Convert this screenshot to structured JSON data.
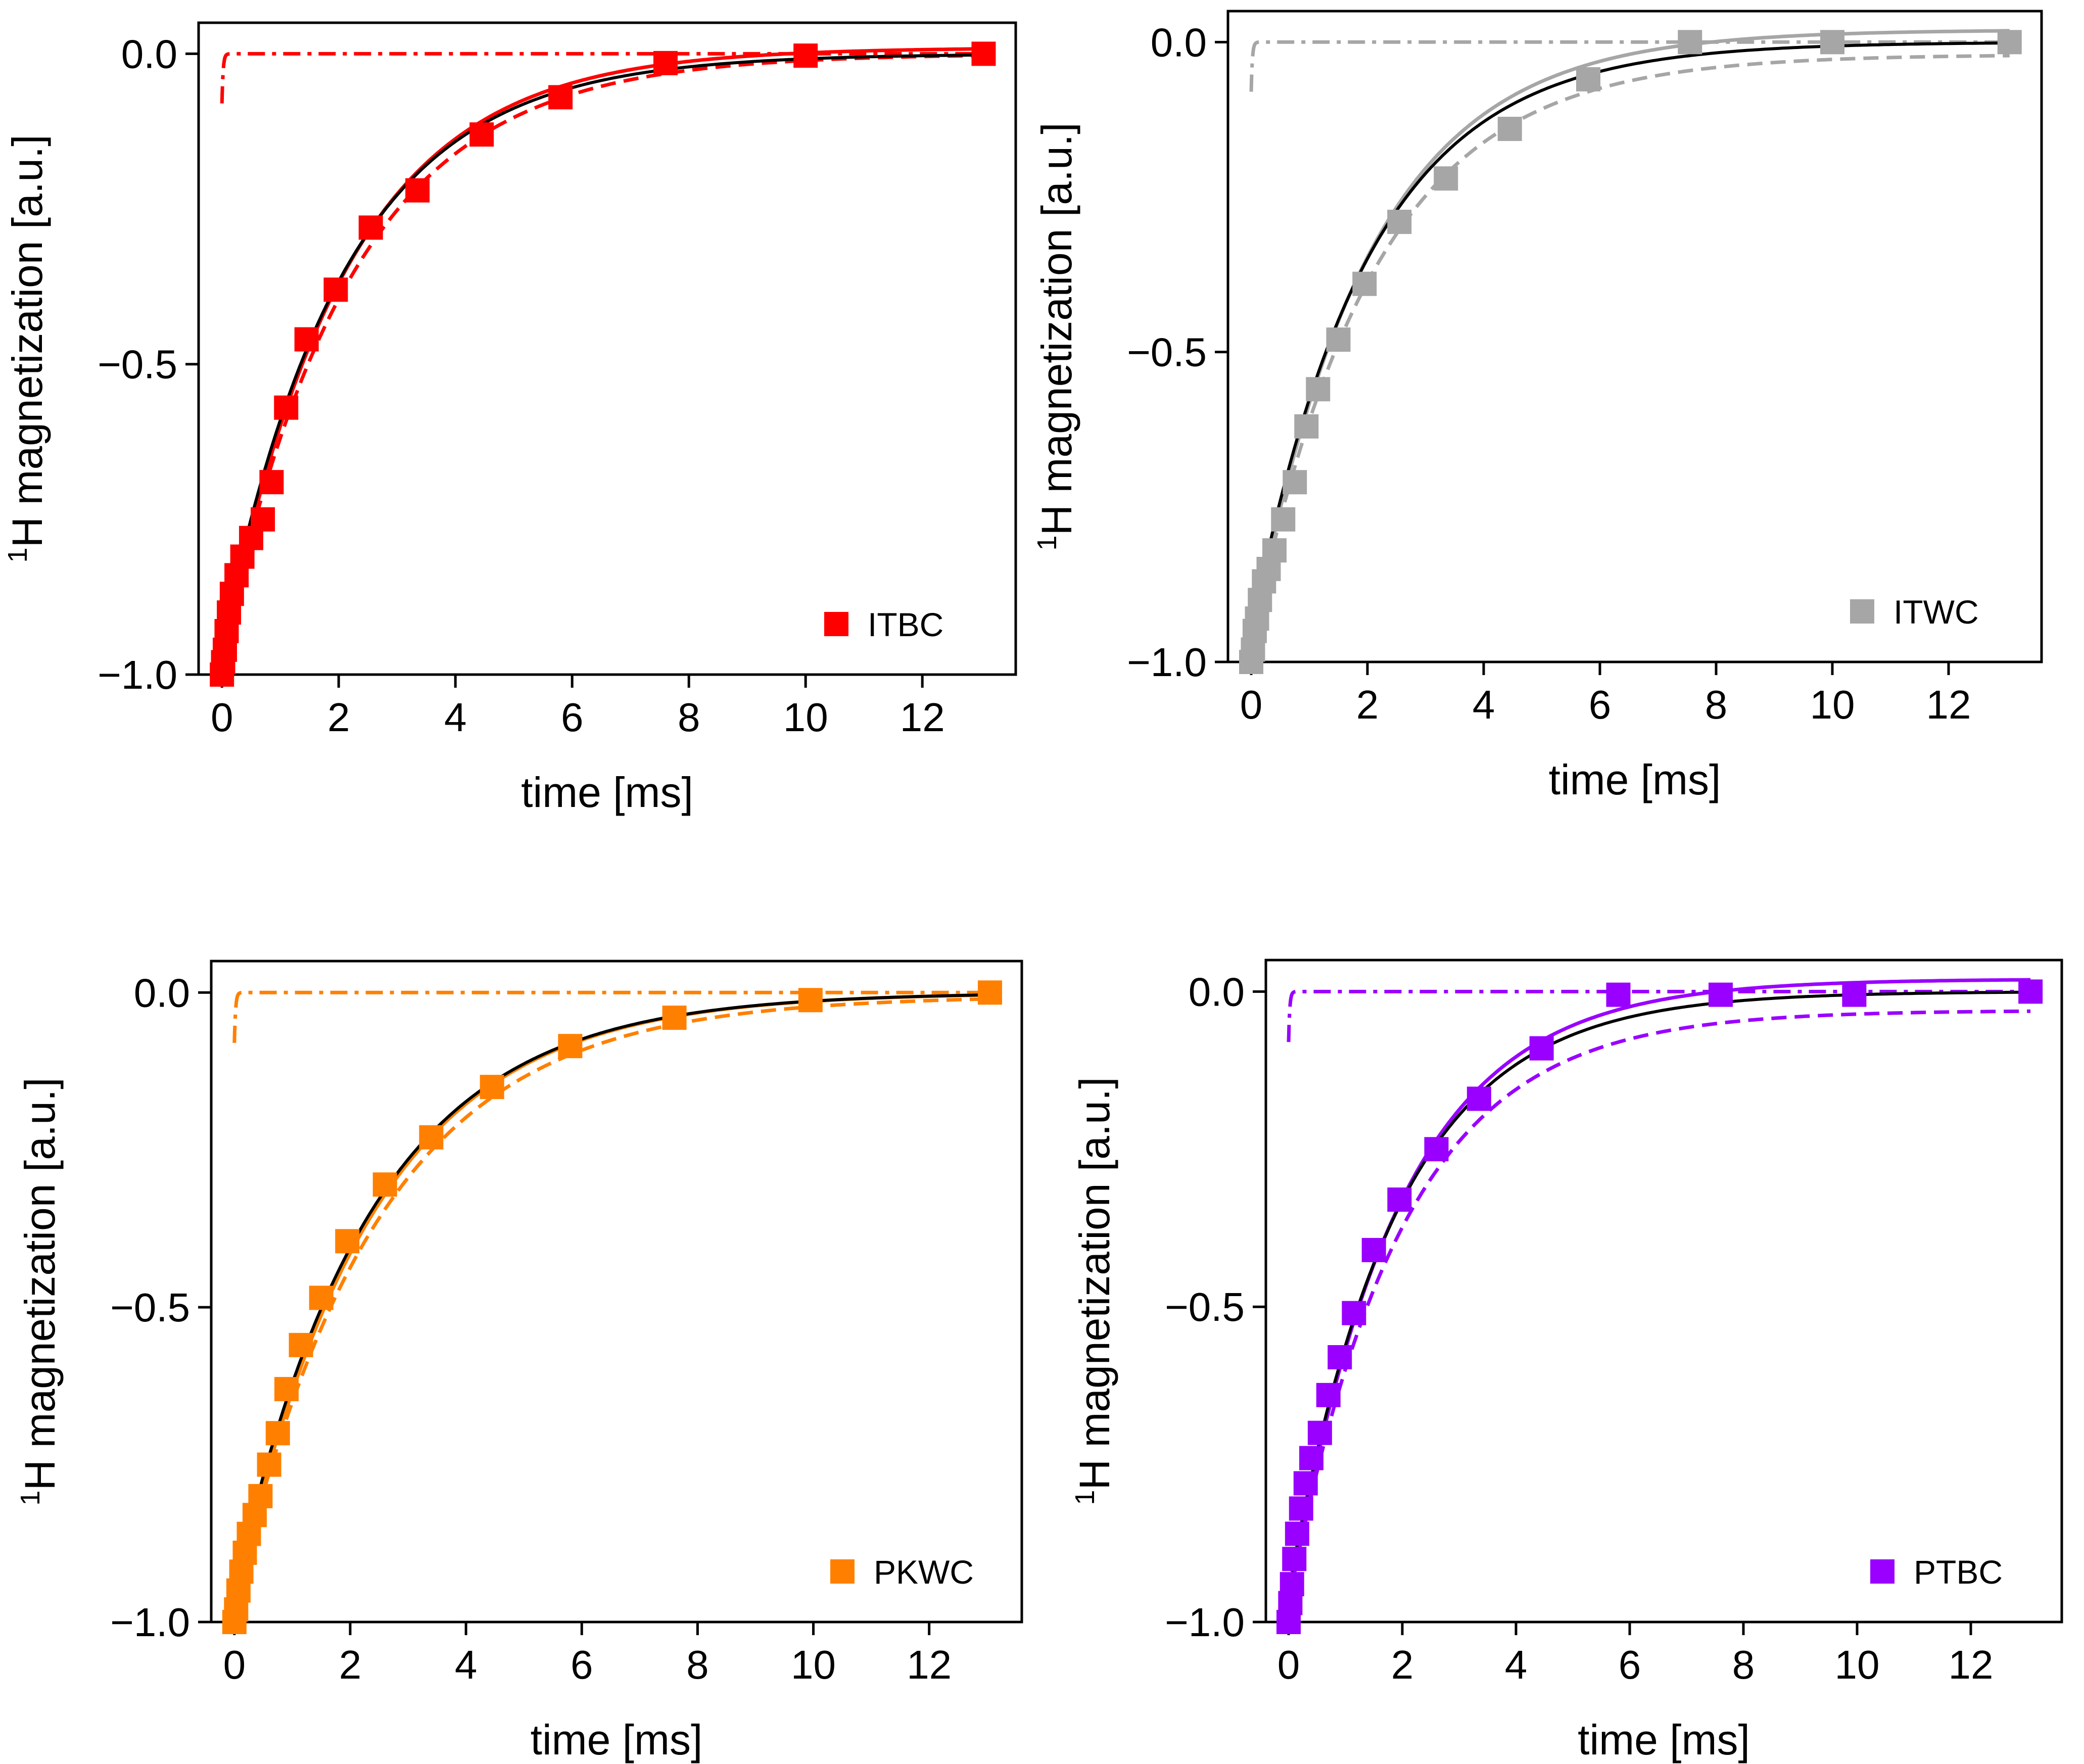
{
  "chart_data": [
    {
      "type": "scatter",
      "xlabel": "time [ms]",
      "ylabel_sup": "1",
      "ylabel": "H magnetization [a.u.]",
      "xlim": [
        -0.4,
        13.6
      ],
      "ylim": [
        -1.0,
        0.05
      ],
      "xticks": [
        0,
        2,
        4,
        6,
        8,
        10,
        12
      ],
      "yticks": [
        -1.0,
        -0.5,
        0.0
      ],
      "ytick_labels": [
        "−1.0",
        "−0.5",
        "0.0"
      ],
      "legend_position": "bottom-right",
      "series": [
        {
          "name": "ITBC",
          "color": "#ff0000",
          "x": [
            0.0,
            0.02,
            0.05,
            0.08,
            0.12,
            0.17,
            0.25,
            0.35,
            0.5,
            0.7,
            0.85,
            1.1,
            1.45,
            1.95,
            2.55,
            3.35,
            4.45,
            5.8,
            7.6,
            10.0,
            13.05
          ],
          "values": [
            -1.0,
            -0.98,
            -0.96,
            -0.93,
            -0.9,
            -0.87,
            -0.84,
            -0.81,
            -0.78,
            -0.75,
            -0.69,
            -0.57,
            -0.46,
            -0.38,
            -0.28,
            -0.22,
            -0.13,
            -0.07,
            -0.015,
            -0.003,
            0.0
          ]
        }
      ]
    },
    {
      "type": "scatter",
      "xlabel": "time [ms]",
      "ylabel_sup": "1",
      "ylabel": "H magnetization [a.u.]",
      "xlim": [
        -0.4,
        13.6
      ],
      "ylim": [
        -1.0,
        0.05
      ],
      "xticks": [
        0,
        2,
        4,
        6,
        8,
        10,
        12
      ],
      "yticks": [
        -1.0,
        -0.5,
        0.0
      ],
      "ytick_labels": [
        "−1.0",
        "−0.5",
        "0.0"
      ],
      "legend_position": "bottom-right",
      "series": [
        {
          "name": "ITWC",
          "color": "#a6a6a6",
          "x": [
            0.0,
            0.03,
            0.06,
            0.1,
            0.15,
            0.22,
            0.3,
            0.4,
            0.55,
            0.75,
            0.95,
            1.15,
            1.5,
            1.95,
            2.55,
            3.35,
            4.45,
            5.8,
            7.55,
            10.0,
            13.05
          ],
          "values": [
            -1.0,
            -0.98,
            -0.95,
            -0.93,
            -0.9,
            -0.87,
            -0.85,
            -0.82,
            -0.77,
            -0.71,
            -0.62,
            -0.56,
            -0.48,
            -0.39,
            -0.29,
            -0.22,
            -0.14,
            -0.06,
            0.0,
            0.0,
            0.0
          ]
        }
      ]
    },
    {
      "type": "scatter",
      "xlabel": "time [ms]",
      "ylabel_sup": "1",
      "ylabel": "H magnetization [a.u.]",
      "xlim": [
        -0.4,
        13.6
      ],
      "ylim": [
        -1.0,
        0.05
      ],
      "xticks": [
        0,
        2,
        4,
        6,
        8,
        10,
        12
      ],
      "yticks": [
        -1.0,
        -0.5,
        0.0
      ],
      "ytick_labels": [
        "−1.0",
        "−0.5",
        "0.0"
      ],
      "legend_position": "bottom-right",
      "series": [
        {
          "name": "PKWC",
          "color": "#ff8000",
          "x": [
            0.0,
            0.03,
            0.07,
            0.12,
            0.18,
            0.25,
            0.35,
            0.45,
            0.6,
            0.75,
            0.9,
            1.15,
            1.5,
            1.95,
            2.6,
            3.4,
            4.45,
            5.8,
            7.6,
            9.95,
            13.05
          ],
          "values": [
            -1.0,
            -0.98,
            -0.95,
            -0.92,
            -0.89,
            -0.86,
            -0.83,
            -0.8,
            -0.75,
            -0.7,
            -0.63,
            -0.56,
            -0.485,
            -0.395,
            -0.305,
            -0.23,
            -0.15,
            -0.085,
            -0.04,
            -0.012,
            0.0
          ]
        }
      ]
    },
    {
      "type": "scatter",
      "xlabel": "time [ms]",
      "ylabel_sup": "1",
      "ylabel": "H magnetization [a.u.]",
      "xlim": [
        -0.4,
        13.6
      ],
      "ylim": [
        -1.0,
        0.05
      ],
      "xticks": [
        0,
        2,
        4,
        6,
        8,
        10,
        12
      ],
      "yticks": [
        -1.0,
        -0.5,
        0.0
      ],
      "ytick_labels": [
        "−1.0",
        "−0.5",
        "0.0"
      ],
      "legend_position": "bottom-right",
      "series": [
        {
          "name": "PTBC",
          "color": "#9900ff",
          "x": [
            0.0,
            0.03,
            0.06,
            0.1,
            0.15,
            0.22,
            0.3,
            0.4,
            0.55,
            0.7,
            0.9,
            1.15,
            1.5,
            1.95,
            2.6,
            3.35,
            4.45,
            5.8,
            7.6,
            9.95,
            13.05
          ],
          "values": [
            -1.0,
            -0.97,
            -0.94,
            -0.9,
            -0.86,
            -0.82,
            -0.78,
            -0.74,
            -0.7,
            -0.64,
            -0.58,
            -0.51,
            -0.41,
            -0.33,
            -0.25,
            -0.17,
            -0.09,
            -0.005,
            -0.005,
            -0.005,
            0.0
          ]
        }
      ]
    }
  ]
}
